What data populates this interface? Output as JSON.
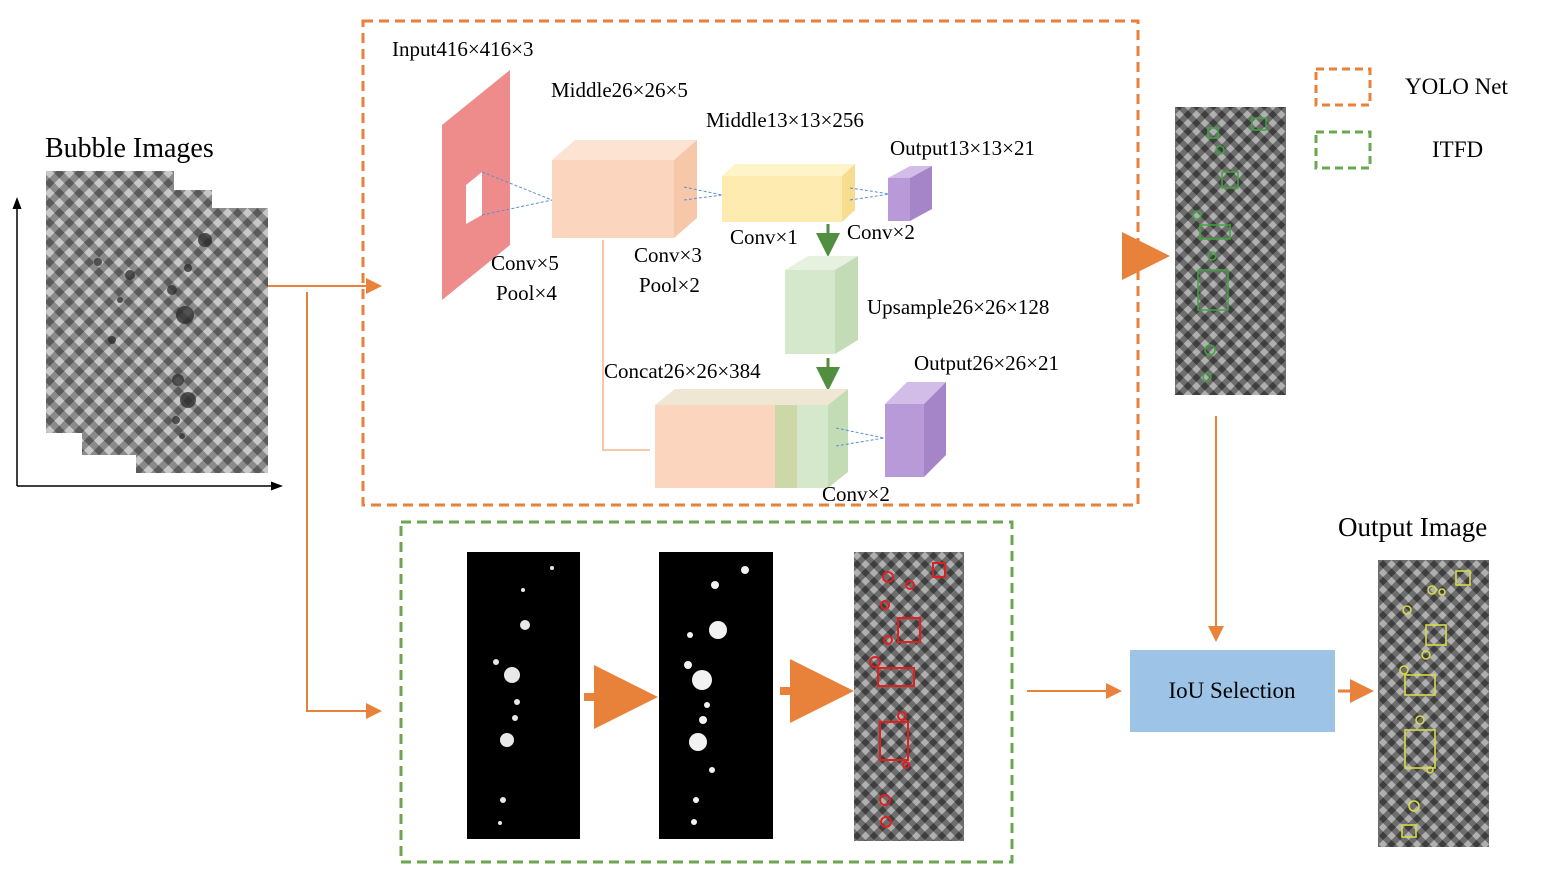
{
  "labels": {
    "bubble_images": "Bubble Images",
    "output_image": "Output Image",
    "iou_selection": "IoU Selection",
    "input": "Input416×416×3",
    "middle1": "Middle26×26×5",
    "middle2": "Middle13×13×256",
    "output1": "Output13×13×21",
    "conv5": "Conv×5",
    "pool4": "Pool×4",
    "conv3": "Conv×3",
    "pool2": "Pool×2",
    "conv1": "Conv×1",
    "conv2a": "Conv×2",
    "upsample": "Upsample26×26×128",
    "concat": "Concat26×26×384",
    "output2": "Output26×26×21",
    "conv2b": "Conv×2"
  },
  "legend": [
    {
      "label": "YOLO Net",
      "color": "#e8823a"
    },
    {
      "label": "ITFD",
      "color": "#6aa84f"
    }
  ],
  "colors": {
    "orange": "#e8823a",
    "green": "#6aa84f",
    "pink": "#ee8b8b",
    "peach": "#fbd5bd",
    "yellow": "#fdebb0",
    "light_green": "#d6e8cc",
    "purple": "#b99ad8",
    "iou_box": "#9dc3e6",
    "detect_red": "#e02020",
    "detect_yellow": "#d9d94a",
    "detect_green": "#3fa63f"
  }
}
